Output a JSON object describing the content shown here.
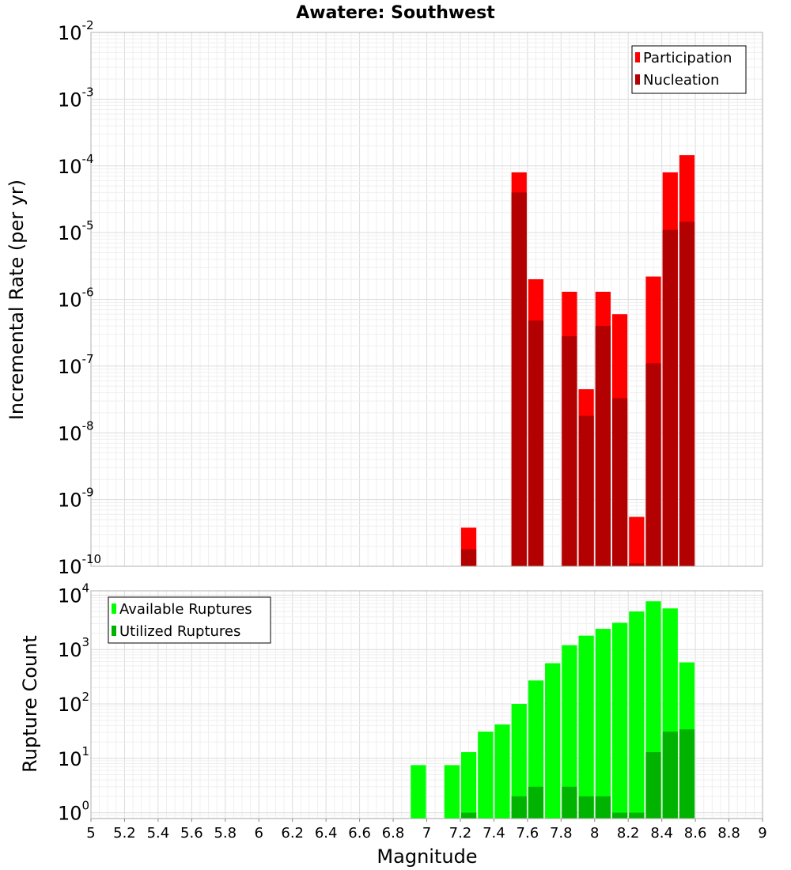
{
  "chart_data": [
    {
      "type": "bar",
      "title": "Awatere: Southwest",
      "xlabel": "",
      "ylabel": "Incremental Rate (per yr)",
      "yscale": "log",
      "ylim": [
        1e-10,
        0.01
      ],
      "xlim": [
        5,
        9
      ],
      "legend_position": "top-right",
      "y_ticks": [
        {
          "base": "10",
          "exp": "-2",
          "value": 0.01
        },
        {
          "base": "10",
          "exp": "-3",
          "value": 0.001
        },
        {
          "base": "10",
          "exp": "-4",
          "value": 0.0001
        },
        {
          "base": "10",
          "exp": "-5",
          "value": 1e-05
        },
        {
          "base": "10",
          "exp": "-6",
          "value": 1e-06
        },
        {
          "base": "10",
          "exp": "-7",
          "value": 1e-07
        },
        {
          "base": "10",
          "exp": "-8",
          "value": 1e-08
        },
        {
          "base": "10",
          "exp": "-9",
          "value": 1e-09
        },
        {
          "base": "10",
          "exp": "-10",
          "value": 1e-10
        }
      ],
      "series": [
        {
          "name": "Participation",
          "color": "#ff0000",
          "points": [
            {
              "x": 7.25,
              "y": 3.8e-10
            },
            {
              "x": 7.55,
              "y": 8e-05
            },
            {
              "x": 7.65,
              "y": 2e-06
            },
            {
              "x": 7.85,
              "y": 1.3e-06
            },
            {
              "x": 7.95,
              "y": 4.5e-08
            },
            {
              "x": 8.05,
              "y": 1.3e-06
            },
            {
              "x": 8.15,
              "y": 6e-07
            },
            {
              "x": 8.25,
              "y": 5.5e-10
            },
            {
              "x": 8.35,
              "y": 2.2e-06
            },
            {
              "x": 8.45,
              "y": 8e-05
            },
            {
              "x": 8.55,
              "y": 0.000145
            }
          ]
        },
        {
          "name": "Nucleation",
          "color": "#b30000",
          "points": [
            {
              "x": 7.25,
              "y": 1.8e-10
            },
            {
              "x": 7.55,
              "y": 4e-05
            },
            {
              "x": 7.65,
              "y": 4.8e-07
            },
            {
              "x": 7.85,
              "y": 2.8e-07
            },
            {
              "x": 7.95,
              "y": 1.8e-08
            },
            {
              "x": 8.05,
              "y": 4e-07
            },
            {
              "x": 8.15,
              "y": 3.3e-08
            },
            {
              "x": 8.25,
              "y": 1.1e-10
            },
            {
              "x": 8.35,
              "y": 1.1e-07
            },
            {
              "x": 8.45,
              "y": 1.1e-05
            },
            {
              "x": 8.55,
              "y": 1.45e-05
            }
          ]
        }
      ]
    },
    {
      "type": "bar",
      "title": "",
      "xlabel": "Magnitude",
      "ylabel": "Rupture Count",
      "yscale": "log",
      "ylim": [
        0.78,
        12000
      ],
      "xlim": [
        5,
        9
      ],
      "legend_position": "top-left",
      "x_tick_labels": [
        "5",
        "5.2",
        "5.4",
        "5.6",
        "5.8",
        "6",
        "6.2",
        "6.4",
        "6.6",
        "6.8",
        "7",
        "7.2",
        "7.4",
        "7.6",
        "7.8",
        "8",
        "8.2",
        "8.4",
        "8.6",
        "8.8",
        "9"
      ],
      "y_ticks": [
        {
          "base": "10",
          "exp": "4",
          "value": 10000.0
        },
        {
          "base": "10",
          "exp": "3",
          "value": 1000.0
        },
        {
          "base": "10",
          "exp": "2",
          "value": 100.0
        },
        {
          "base": "10",
          "exp": "1",
          "value": 10.0
        },
        {
          "base": "10",
          "exp": "0",
          "value": 1
        }
      ],
      "series": [
        {
          "name": "Available Ruptures",
          "color": "#00ff00",
          "points": [
            {
              "x": 6.95,
              "y": 7.5
            },
            {
              "x": 7.15,
              "y": 7.5
            },
            {
              "x": 7.25,
              "y": 13
            },
            {
              "x": 7.35,
              "y": 31
            },
            {
              "x": 7.45,
              "y": 42
            },
            {
              "x": 7.55,
              "y": 100
            },
            {
              "x": 7.65,
              "y": 270
            },
            {
              "x": 7.75,
              "y": 560
            },
            {
              "x": 7.85,
              "y": 1200
            },
            {
              "x": 7.95,
              "y": 1800
            },
            {
              "x": 8.05,
              "y": 2400
            },
            {
              "x": 8.15,
              "y": 3100
            },
            {
              "x": 8.25,
              "y": 5000
            },
            {
              "x": 8.35,
              "y": 7700
            },
            {
              "x": 8.45,
              "y": 5700
            },
            {
              "x": 8.55,
              "y": 580
            }
          ]
        },
        {
          "name": "Utilized Ruptures",
          "color": "#00b300",
          "points": [
            {
              "x": 7.25,
              "y": 1
            },
            {
              "x": 7.55,
              "y": 2
            },
            {
              "x": 7.65,
              "y": 3
            },
            {
              "x": 7.85,
              "y": 3
            },
            {
              "x": 7.95,
              "y": 2
            },
            {
              "x": 8.05,
              "y": 2
            },
            {
              "x": 8.15,
              "y": 1
            },
            {
              "x": 8.25,
              "y": 1
            },
            {
              "x": 8.35,
              "y": 13
            },
            {
              "x": 8.45,
              "y": 31
            },
            {
              "x": 8.55,
              "y": 34
            }
          ]
        }
      ]
    }
  ]
}
